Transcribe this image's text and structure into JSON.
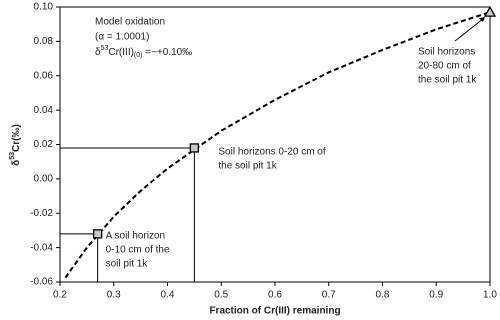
{
  "chart_data": {
    "type": "line",
    "x_label": "Fraction of Cr(III) remaining",
    "y_label": [
      "δ",
      "53",
      "Cr(‰)"
    ],
    "model_text": {
      "line1": "Model oxidation",
      "line2": "(α = 1.0001)",
      "line3": [
        "δ",
        "53",
        "Cr(III)",
        "(0)",
        " =~+0.10‰"
      ]
    },
    "model_curve": {
      "x": [
        0.21,
        0.25,
        0.3,
        0.35,
        0.4,
        0.5,
        0.6,
        0.7,
        0.8,
        0.9,
        1.0
      ],
      "values": [
        -0.0575,
        -0.04,
        -0.022,
        -0.007,
        0.006,
        0.028,
        0.046,
        0.062,
        0.075,
        0.087,
        0.097
      ],
      "color": "#000000",
      "dashed": true
    },
    "points": {
      "x": [
        0.27,
        0.45,
        1.0
      ],
      "values": [
        -0.032,
        0.018,
        0.097
      ],
      "markers": [
        "square",
        "square",
        "triangle"
      ],
      "color": "#c8c8c8",
      "labels": [
        [
          "A soil horizon",
          "0-10 cm of the",
          "soil pit 1k"
        ],
        [
          "Soil horizons 0-20 cm of",
          "the soil pit 1k"
        ],
        [
          "Soil horizons",
          "20-80 cm of",
          "the soil pit 1k"
        ]
      ]
    },
    "xlim": [
      0.2,
      1.0
    ],
    "xticks": [
      0.2,
      0.3,
      0.4,
      0.5,
      0.6,
      0.7,
      0.8,
      0.9,
      {
        "value": 1.0,
        "label": "1.0"
      }
    ],
    "ylim": [
      -0.06,
      0.1
    ],
    "yticks": [
      -0.06,
      -0.04,
      -0.02,
      {
        "value": 0,
        "label": "0.00"
      },
      0.02,
      0.04,
      0.06,
      0.08,
      {
        "value": 0.1,
        "label": "0.10"
      }
    ],
    "grid": false
  }
}
